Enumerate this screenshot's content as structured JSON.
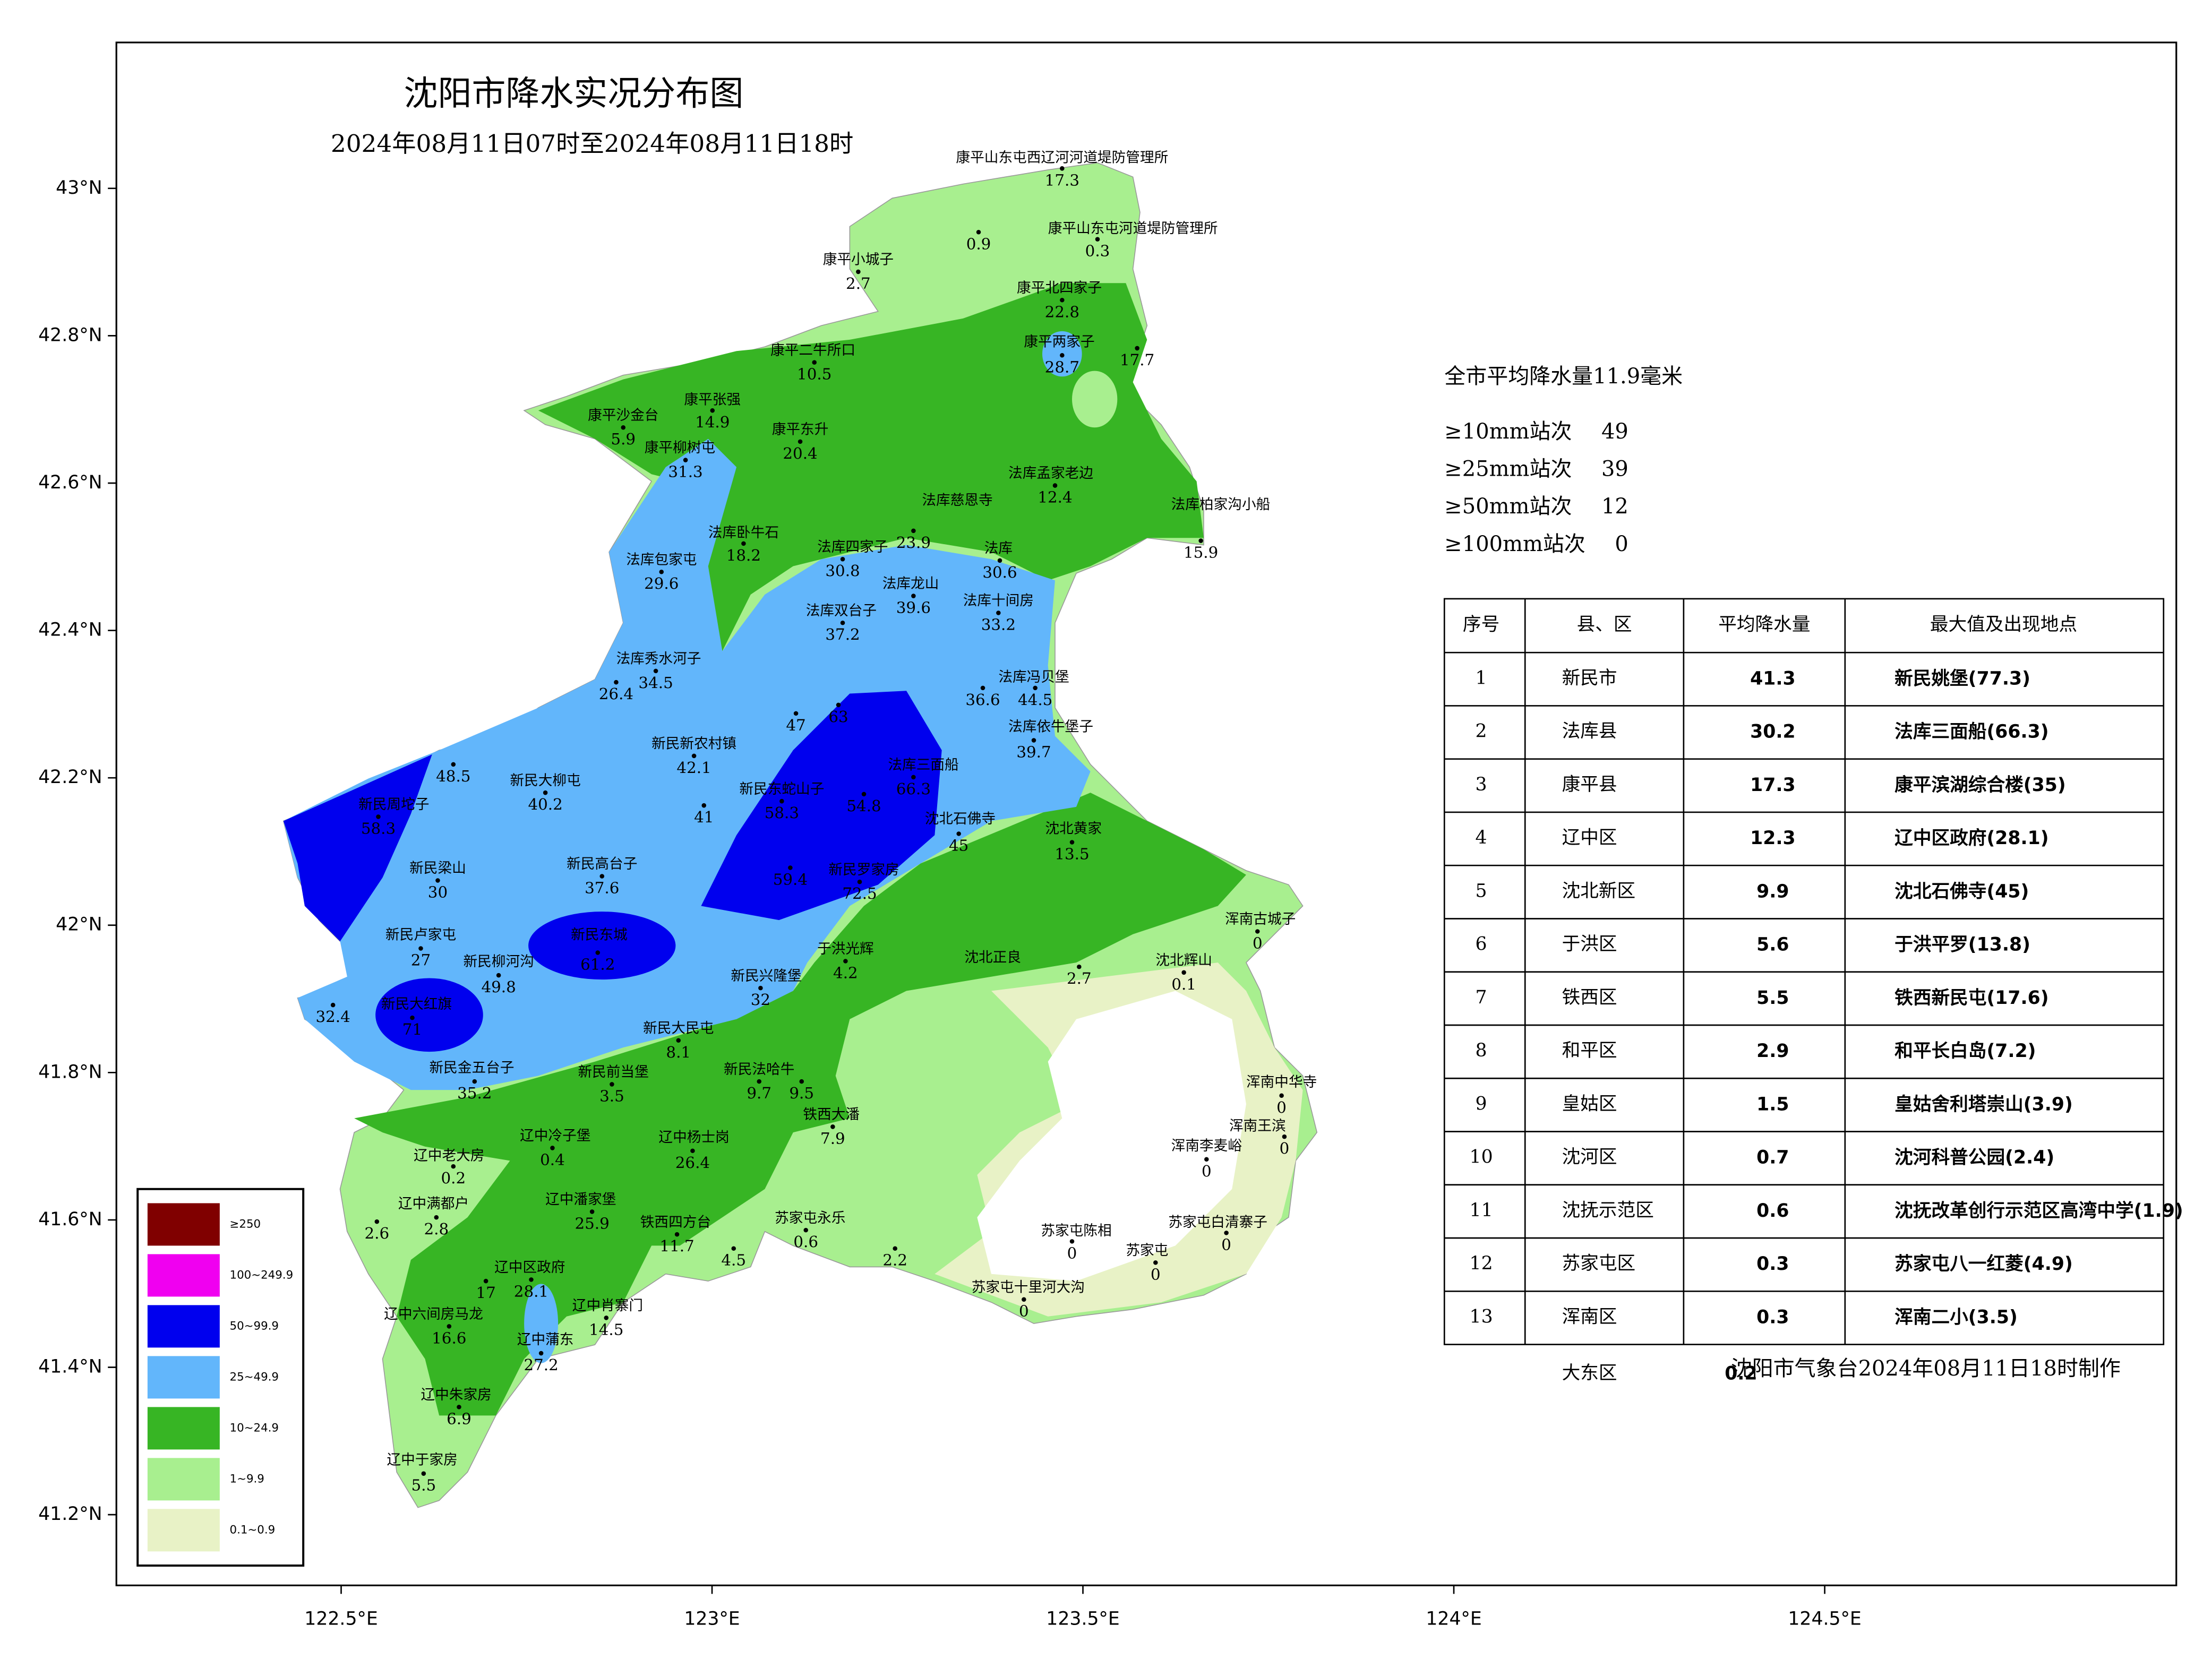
{
  "map": {
    "title": "沈阳市降水实况分布图",
    "subtitle": "2024年08月11日07时至2024年08月11日18时",
    "xlim": [
      122.197,
      124.974
    ],
    "ylim": [
      41.104,
      43.198
    ],
    "xticks": [
      {
        "value": 122.5,
        "label": "122.5°E"
      },
      {
        "value": 123,
        "label": "123°E"
      },
      {
        "value": 123.5,
        "label": "123.5°E"
      },
      {
        "value": 124,
        "label": "124°E"
      },
      {
        "value": 124.5,
        "label": "124.5°E"
      }
    ],
    "yticks": [
      {
        "value": 43,
        "label": "43°N"
      },
      {
        "value": 42.8,
        "label": "42.8°N"
      },
      {
        "value": 42.6,
        "label": "42.6°N"
      },
      {
        "value": 42.4,
        "label": "42.4°N"
      },
      {
        "value": 42.2,
        "label": "42.2°N"
      },
      {
        "value": 42,
        "label": "42°N"
      },
      {
        "value": 41.8,
        "label": "41.8°N"
      },
      {
        "value": 41.6,
        "label": "41.6°N"
      },
      {
        "value": 41.4,
        "label": "41.4°N"
      },
      {
        "value": 41.2,
        "label": "41.2°N"
      }
    ],
    "legend": [
      {
        "label": "≥250",
        "color": "#800000"
      },
      {
        "label": "100~249.9",
        "color": "#f000f0"
      },
      {
        "label": "50~99.9",
        "color": "#0000ee"
      },
      {
        "label": "25~49.9",
        "color": "#62b6fb"
      },
      {
        "label": "10~24.9",
        "color": "#37b524"
      },
      {
        "label": "1~9.9",
        "color": "#a8ef8f"
      },
      {
        "label": "0.1~0.9",
        "color": "#e8f2c6"
      }
    ],
    "summary": "全市平均降水量11.9毫米",
    "counts": [
      {
        "label": "≥10mm站次",
        "value": 49
      },
      {
        "label": "≥25mm站次",
        "value": 39
      },
      {
        "label": "≥50mm站次",
        "value": 12
      },
      {
        "label": "≥100mm站次",
        "value": 0
      }
    ],
    "table": {
      "header": [
        "序号",
        "县、区",
        "平均降水量",
        "最大值及出现地点"
      ],
      "rows": [
        [
          1,
          "新民市",
          41.3,
          "新民姚堡(77.3)"
        ],
        [
          2,
          "法库县",
          30.2,
          "法库三面船(66.3)"
        ],
        [
          3,
          "康平县",
          17.3,
          "康平滨湖综合楼(35)"
        ],
        [
          4,
          "辽中区",
          12.3,
          "辽中区政府(28.1)"
        ],
        [
          5,
          "沈北新区",
          9.9,
          "沈北石佛寺(45)"
        ],
        [
          6,
          "于洪区",
          5.6,
          "于洪平罗(13.8)"
        ],
        [
          7,
          "铁西区",
          5.5,
          "铁西新民屯(17.6)"
        ],
        [
          8,
          "和平区",
          2.9,
          "和平长白岛(7.2)"
        ],
        [
          9,
          "皇姑区",
          1.5,
          "皇姑舍利塔崇山(3.9)"
        ],
        [
          10,
          "沈河区",
          0.7,
          "沈河科普公园(2.4)"
        ],
        [
          11,
          "沈抚示范区",
          0.6,
          "沈抚改革创行示范区高湾中学(1.9)"
        ],
        [
          12,
          "苏家屯区",
          0.3,
          "苏家屯八一红菱(4.9)"
        ],
        [
          13,
          "浑南区",
          0.3,
          "浑南二小(3.5)"
        ]
      ],
      "extra_row": [
        "大东区",
        0.2
      ]
    },
    "footer": "沈阳市气象台2024年08月11日18时制作",
    "stations": [
      {
        "name": "康平山东屯西辽河河道堤防管理所",
        "value": 17.3
      },
      {
        "name": "康平山东屯河道堤防管理所",
        "value": 0.3
      },
      {
        "value": 0.9
      },
      {
        "name": "康平小城子",
        "value": 2.7
      },
      {
        "name": "康平北四家子",
        "value": 22.8
      },
      {
        "name": "康平两家子",
        "value": 28.7
      },
      {
        "value": 17.7
      },
      {
        "name": "康平二牛所口",
        "value": 10.5
      },
      {
        "name": "康平张强",
        "value": 14.9
      },
      {
        "name": "康平沙金台",
        "value": 5.9
      },
      {
        "name": "康平东升",
        "value": 20.4
      },
      {
        "name": "康平柳树屯",
        "value": 31.3
      },
      {
        "name": "法库孟家老边",
        "value": 12.4
      },
      {
        "name": "法库慈恩寺",
        "value": 23.9
      },
      {
        "name": "法库卧牛石",
        "value": 18.2
      },
      {
        "name": "法库四家子",
        "value": 30.8
      },
      {
        "name": "法库",
        "value": 30.6
      },
      {
        "name": "法库包家屯",
        "value": 29.6
      },
      {
        "name": "法库柏家沟小船",
        "value": 15.9
      },
      {
        "name": "法库龙山",
        "value": 39.6
      },
      {
        "name": "法库双台子",
        "value": 37.2
      },
      {
        "name": "法库十间房",
        "value": 33.2
      },
      {
        "name": "法库秀水河子",
        "value": 26.4
      },
      {
        "value": 34.5
      },
      {
        "name": "法库冯贝堡",
        "value": 44.5
      },
      {
        "value": 36.6
      },
      {
        "name": "法库依牛堡子",
        "value": 39.7
      },
      {
        "name": "法库三面船",
        "value": 66.3
      },
      {
        "value": 63
      },
      {
        "value": 47
      },
      {
        "name": "新民大柳屯",
        "value": 40.2
      },
      {
        "value": 48.5
      },
      {
        "name": "新民新农村镇",
        "value": 42.1
      },
      {
        "name": "新民东蛇山子",
        "value": 58.3
      },
      {
        "value": 54.8
      },
      {
        "value": 41
      },
      {
        "name": "新民周坨子",
        "value": 58.3
      },
      {
        "name": "沈北黄家",
        "value": 13.5
      },
      {
        "name": "沈北石佛寺",
        "value": 45
      },
      {
        "name": "新民梁山",
        "value": 30
      },
      {
        "name": "新民高台子",
        "value": 37.6
      },
      {
        "name": "新民罗家房",
        "value": 72.5
      },
      {
        "value": 59.4
      },
      {
        "name": "新民卢家屯",
        "value": 27
      },
      {
        "name": "新民柳河沟",
        "value": 49.8
      },
      {
        "name": "新民东城",
        "value": 61.2
      },
      {
        "name": "新民大红旗",
        "value": 71
      },
      {
        "value": 32.4
      },
      {
        "name": "新民兴隆堡",
        "value": 32
      },
      {
        "name": "于洪光辉",
        "value": 4.2
      },
      {
        "name": "新民大民屯",
        "value": 8.1
      },
      {
        "name": "新民金五台子",
        "value": 35.2
      },
      {
        "name": "新民前当堡",
        "value": 3.5
      },
      {
        "name": "新民法哈牛",
        "value": 9.7
      },
      {
        "value": 9.5
      },
      {
        "name": "辽中冷子堡",
        "value": 0.4
      },
      {
        "name": "辽中老大房",
        "value": 0.2
      },
      {
        "name": "辽中满都户",
        "value": 2.8
      },
      {
        "value": 2.6
      },
      {
        "name": "辽中潘家堡",
        "value": 25.9
      },
      {
        "name": "辽中杨士岗",
        "value": 26.4
      },
      {
        "name": "铁西四方台",
        "value": 11.7
      },
      {
        "name": "辽中区政府",
        "value": 28.1
      },
      {
        "value": 17
      },
      {
        "name": "辽中六间房马龙",
        "value": 16.6
      },
      {
        "name": "辽中肖寨门",
        "value": 14.5
      },
      {
        "name": "辽中蒲东",
        "value": 27.2
      },
      {
        "name": "辽中朱家房",
        "value": 6.9
      },
      {
        "name": "辽中于家房",
        "value": 5.5
      },
      {
        "name": "铁西大潘",
        "value": 7.9
      },
      {
        "name": "苏家屯永乐",
        "value": 0.6
      },
      {
        "value": 4.5
      },
      {
        "value": 2.2
      },
      {
        "name": "苏家屯十里河大沟",
        "value": 0
      },
      {
        "name": "沈北正良",
        "value": 2.7
      },
      {
        "name": "沈北辉山",
        "value": 0.1
      },
      {
        "name": "浑南古城子",
        "value": 0
      },
      {
        "name": "浑南中华寺",
        "value": 0
      },
      {
        "name": "浑南李麦峪",
        "value": 0
      },
      {
        "name": "浑南王滨",
        "value": 0
      },
      {
        "name": "苏家屯陈相",
        "value": 0
      },
      {
        "name": "苏家屯",
        "value": 0
      },
      {
        "name": "苏家屯白清寨子",
        "value": 0
      }
    ]
  }
}
